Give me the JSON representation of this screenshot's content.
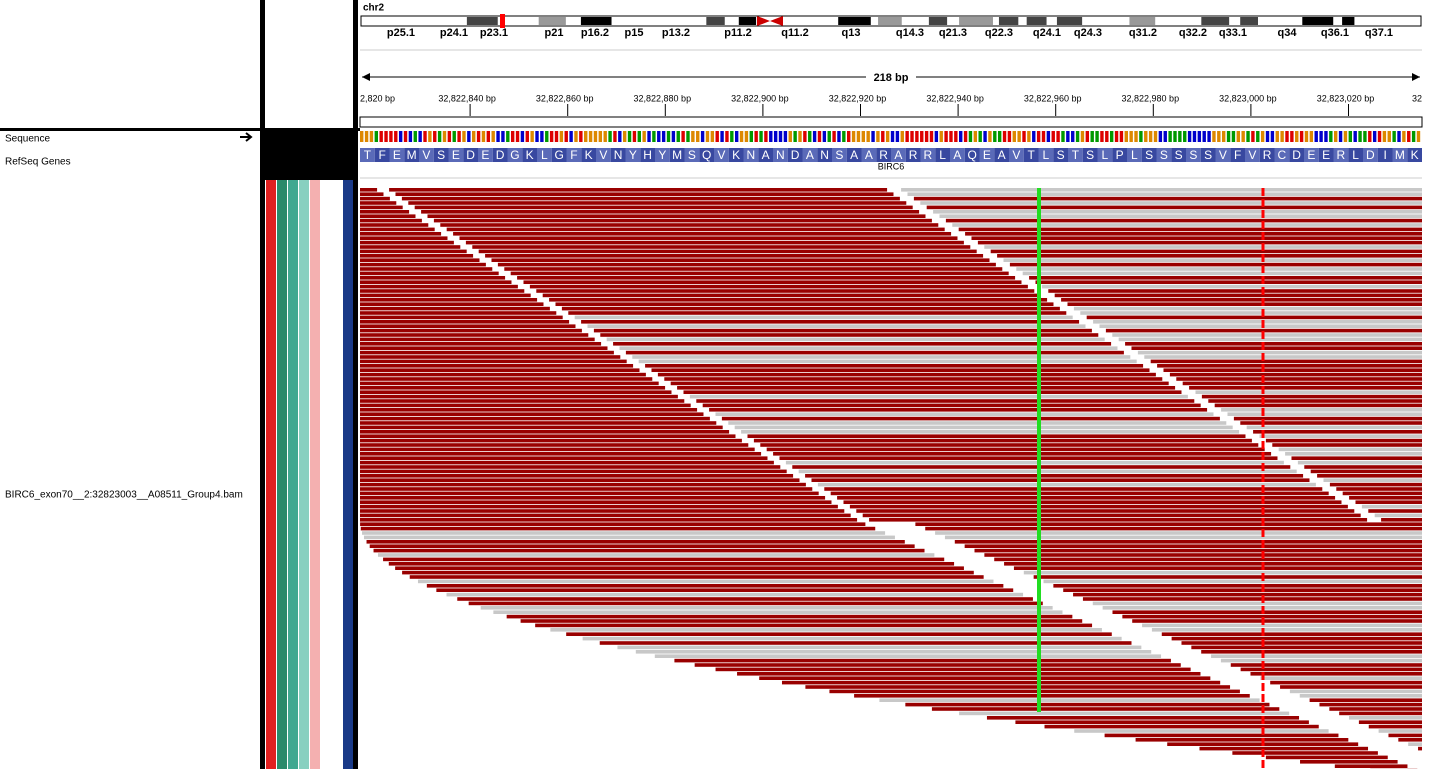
{
  "locus": {
    "chromosome": "chr2",
    "cytobands": [
      "p25.1",
      "p24.1",
      "p23.1",
      "p21",
      "p16.2",
      "p15",
      "p13.2",
      "p11.2",
      "q11.2",
      "q13",
      "q14.3",
      "q21.3",
      "q22.3",
      "q24.1",
      "q24.3",
      "q31.2",
      "q32.2",
      "q33.1",
      "q34",
      "q36.1",
      "q37.1"
    ],
    "span": "218 bp",
    "ruler": [
      "2,820 bp",
      "32,822,840 bp",
      "32,822,860 bp",
      "32,822,880 bp",
      "32,822,900 bp",
      "32,822,920 bp",
      "32,822,940 bp",
      "32,822,960 bp",
      "32,822,980 bp",
      "32,823,000 bp",
      "32,823,020 bp",
      "32"
    ]
  },
  "tracks": {
    "sequence": "Sequence",
    "refseq": "RefSeq Genes",
    "alignment": "BIRC6_exon70__2:32823003__A08511_Group4.bam"
  },
  "gene": {
    "name": "BIRC6",
    "amino_acids": [
      "T",
      "F",
      "E",
      "M",
      "V",
      "S",
      "E",
      "D",
      "E",
      "D",
      "G",
      "K",
      "L",
      "G",
      "F",
      "K",
      "V",
      "N",
      "Y",
      "H",
      "Y",
      "M",
      "S",
      "Q",
      "V",
      "K",
      "N",
      "A",
      "N",
      "D",
      "A",
      "N",
      "S",
      "A",
      "A",
      "R",
      "A",
      "R",
      "R",
      "L",
      "A",
      "Q",
      "E",
      "A",
      "V",
      "T",
      "L",
      "S",
      "T",
      "S",
      "L",
      "P",
      "L",
      "S",
      "S",
      "S",
      "S",
      "S",
      "V",
      "F",
      "V",
      "R",
      "C",
      "D",
      "E",
      "E",
      "R",
      "L",
      "D",
      "I",
      "M",
      "K"
    ]
  }
}
